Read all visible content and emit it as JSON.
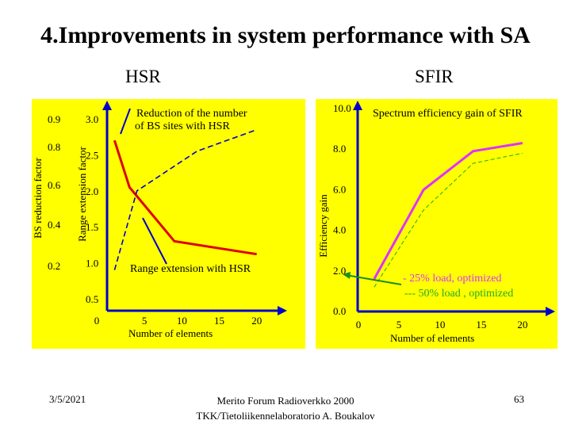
{
  "slide": {
    "title": "4.Improvements in system performance with SA",
    "hsr_heading": "HSR",
    "sfir_heading": "SFIR",
    "footer_date": "3/5/2021",
    "footer_center": "Merito Forum Radioverkko 2000 TKK/Tietoliikennelaboratorio A. Boukalov",
    "page_number": "63"
  },
  "colors": {
    "panel": "#ffff00",
    "axis": "#0000cc",
    "range_extension": "#dd0000",
    "bs_reduction": "#0000cc",
    "sfir_25": "#dd33ff",
    "sfir_50": "#22aa22",
    "annotation_arrow": "#1a8f1a"
  },
  "chart_data": [
    {
      "type": "line",
      "title": "",
      "x_axis": {
        "label": "Number of elements",
        "ticks": [
          "0",
          "5",
          "10",
          "15",
          "20"
        ],
        "range": [
          0,
          23
        ]
      },
      "y_axes": {
        "left": {
          "label": "BS reduction factor",
          "ticks": [
            "0.9",
            "0.8",
            "0.6",
            "0.4",
            "0.2"
          ]
        },
        "right": {
          "label": "Range extension factor",
          "ticks": [
            "3.0",
            "2.5",
            "2.0",
            "1.5",
            "1.0",
            "0.5"
          ],
          "range": [
            0.5,
            3.0
          ]
        }
      },
      "annotations": {
        "top": "Reduction of the number of BS sites with HSR",
        "bottom": "Range extension with HSR"
      },
      "series": [
        {
          "key": "range_extension",
          "style": "solid",
          "x": [
            1,
            3,
            9,
            20
          ],
          "y": [
            2.7,
            2.05,
            1.3,
            1.12
          ]
        },
        {
          "key": "bs_reduction",
          "style": "dashed",
          "x": [
            1,
            4,
            12,
            20
          ],
          "y": [
            0.9,
            2.0,
            2.55,
            2.85
          ]
        }
      ]
    },
    {
      "type": "line",
      "title": "",
      "x_axis": {
        "label": "Number of elements",
        "ticks": [
          "0",
          "5",
          "10",
          "15",
          "20"
        ],
        "range": [
          0,
          23
        ]
      },
      "y_axis": {
        "label": "Efficiency gain",
        "ticks": [
          "10.0",
          "8.0",
          "6.0",
          "4.0",
          "2.0",
          "0.0"
        ],
        "range": [
          0,
          10
        ]
      },
      "annotations": {
        "top": "Spectrum efficiency gain of SFIR"
      },
      "legend": [
        "-  25%  load, optimized",
        "---  50% load , optimized"
      ],
      "series": [
        {
          "key": "sfir_25",
          "style": "solid",
          "x": [
            2,
            8,
            14,
            20
          ],
          "y": [
            1.6,
            6.0,
            7.9,
            8.3
          ]
        },
        {
          "key": "sfir_50",
          "style": "dashed",
          "x": [
            2,
            8,
            14,
            20
          ],
          "y": [
            1.2,
            5.0,
            7.3,
            7.8
          ]
        }
      ]
    }
  ]
}
